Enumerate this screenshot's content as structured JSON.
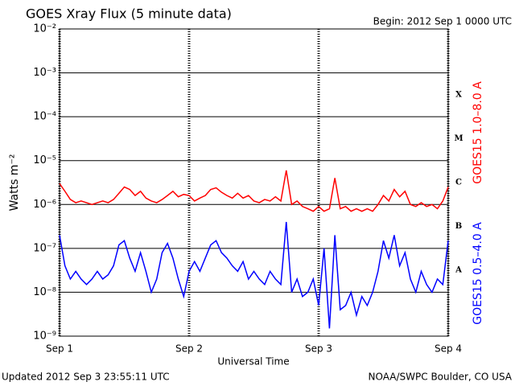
{
  "chart_data": {
    "type": "line",
    "title": "GOES Xray Flux (5 minute data)",
    "subtitle": "Begin:  2012 Sep 1 0000 UTC",
    "xlabel": "Universal Time",
    "ylabel": "Watts m⁻²",
    "footer_left": "Updated 2012 Sep  3 23:55:11 UTC",
    "footer_right": "NOAA/SWPC Boulder, CO USA",
    "flare_classes": [
      "X",
      "M",
      "C",
      "B",
      "A"
    ],
    "log_scale": true,
    "grid": true,
    "xlim": [
      0,
      72
    ],
    "xticks": [
      {
        "value": 0,
        "label": "Sep 1"
      },
      {
        "value": 24,
        "label": "Sep 2"
      },
      {
        "value": 48,
        "label": "Sep 3"
      },
      {
        "value": 72,
        "label": "Sep 4"
      }
    ],
    "ylim": [
      1e-09,
      0.01
    ],
    "yticks": [
      {
        "value": 1e-09,
        "label": "10⁻⁹"
      },
      {
        "value": 1e-08,
        "label": "10⁻⁸"
      },
      {
        "value": 1e-07,
        "label": "10⁻⁷"
      },
      {
        "value": 1e-06,
        "label": "10⁻⁶"
      },
      {
        "value": 1e-05,
        "label": "10⁻⁵"
      },
      {
        "value": 0.0001,
        "label": "10⁻⁴"
      },
      {
        "value": 0.001,
        "label": "10⁻³"
      },
      {
        "value": 0.01,
        "label": "10⁻²"
      }
    ],
    "x": [
      0,
      1,
      2,
      3,
      4,
      5,
      6,
      7,
      8,
      9,
      10,
      11,
      12,
      13,
      14,
      15,
      16,
      17,
      18,
      19,
      20,
      21,
      22,
      23,
      24,
      25,
      26,
      27,
      28,
      29,
      30,
      31,
      32,
      33,
      34,
      35,
      36,
      37,
      38,
      39,
      40,
      41,
      42,
      43,
      44,
      45,
      46,
      47,
      48,
      49,
      50,
      51,
      52,
      53,
      54,
      55,
      56,
      57,
      58,
      59,
      60,
      61,
      62,
      63,
      64,
      65,
      66,
      67,
      68,
      69,
      70,
      71,
      72
    ],
    "series": [
      {
        "name": "GOES15 1.0–8.0 A",
        "color": "#ff0000",
        "values": [
          3e-06,
          2e-06,
          1.3e-06,
          1.1e-06,
          1.2e-06,
          1.1e-06,
          1e-06,
          1.1e-06,
          1.2e-06,
          1.1e-06,
          1.3e-06,
          1.8e-06,
          2.5e-06,
          2.2e-06,
          1.6e-06,
          2e-06,
          1.4e-06,
          1.2e-06,
          1.1e-06,
          1.3e-06,
          1.6e-06,
          2e-06,
          1.5e-06,
          1.7e-06,
          1.6e-06,
          1.2e-06,
          1.4e-06,
          1.6e-06,
          2.2e-06,
          2.4e-06,
          1.9e-06,
          1.6e-06,
          1.4e-06,
          1.8e-06,
          1.4e-06,
          1.6e-06,
          1.2e-06,
          1.1e-06,
          1.3e-06,
          1.2e-06,
          1.5e-06,
          1.2e-06,
          6e-06,
          1e-06,
          1.2e-06,
          9e-07,
          8e-07,
          7e-07,
          9e-07,
          7e-07,
          8e-07,
          4e-06,
          8e-07,
          9e-07,
          7e-07,
          8e-07,
          7e-07,
          8e-07,
          7e-07,
          1e-06,
          1.6e-06,
          1.2e-06,
          2.2e-06,
          1.5e-06,
          2e-06,
          1e-06,
          9e-07,
          1.1e-06,
          9e-07,
          1e-06,
          8e-07,
          1.2e-06,
          2.5e-06
        ]
      },
      {
        "name": "GOES15 0.5–4.0 A",
        "color": "#0000ff",
        "values": [
          2e-07,
          4e-08,
          2e-08,
          3e-08,
          2e-08,
          1.5e-08,
          2e-08,
          3e-08,
          2e-08,
          2.5e-08,
          4e-08,
          1.2e-07,
          1.5e-07,
          6e-08,
          3e-08,
          8e-08,
          3e-08,
          1e-08,
          2e-08,
          8e-08,
          1.3e-07,
          6e-08,
          2e-08,
          8e-09,
          3e-08,
          5e-08,
          3e-08,
          6e-08,
          1.2e-07,
          1.5e-07,
          8e-08,
          6e-08,
          4e-08,
          3e-08,
          5e-08,
          2e-08,
          3e-08,
          2e-08,
          1.5e-08,
          3e-08,
          2e-08,
          1.5e-08,
          4e-07,
          1e-08,
          2e-08,
          8e-09,
          1e-08,
          2e-08,
          5e-09,
          1e-07,
          1.5e-09,
          2e-07,
          4e-09,
          5e-09,
          1e-08,
          3e-09,
          8e-09,
          5e-09,
          1e-08,
          3e-08,
          1.5e-07,
          6e-08,
          2e-07,
          4e-08,
          8e-08,
          2e-08,
          1e-08,
          3e-08,
          1.5e-08,
          1e-08,
          2e-08,
          1.5e-08,
          1.5e-07
        ]
      }
    ]
  }
}
